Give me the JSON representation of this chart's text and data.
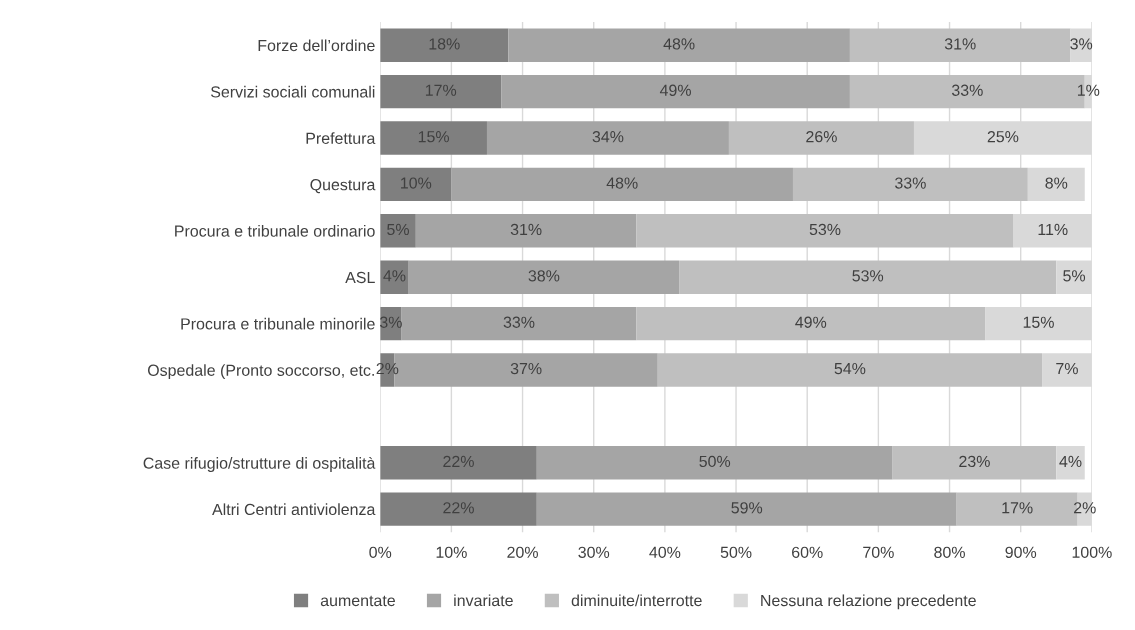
{
  "chart_data": {
    "type": "bar",
    "orientation": "horizontal",
    "stacked": true,
    "categories": [
      "Forze dell’ordine",
      "Servizi sociali comunali",
      "Prefettura",
      "Questura",
      "Procura e tribunale ordinario",
      "ASL",
      "Procura e tribunale minorile",
      "Ospedale (Pronto soccorso, etc.",
      null,
      "Case rifugio/strutture di ospitalità",
      "Altri Centri antiviolenza"
    ],
    "series": [
      {
        "name": "aumentate",
        "color": "#7f7f7f",
        "values": [
          18,
          17,
          15,
          10,
          5,
          4,
          3,
          2,
          null,
          22,
          22
        ],
        "value_labels": [
          "18%",
          "17%",
          "15%",
          "10%",
          "5%",
          "4%",
          "3%",
          "2%",
          null,
          "22%",
          "22%"
        ]
      },
      {
        "name": "invariate",
        "color": "#a5a5a5",
        "values": [
          48,
          49,
          34,
          48,
          31,
          38,
          33,
          37,
          null,
          50,
          59
        ],
        "value_labels": [
          "48%",
          "49%",
          "34%",
          "48%",
          "31%",
          "38%",
          "33%",
          "37%",
          null,
          "50%",
          "59%"
        ]
      },
      {
        "name": "diminuite/interrotte",
        "color": "#bfbfbf",
        "values": [
          31,
          33,
          26,
          33,
          53,
          53,
          49,
          54,
          null,
          23,
          17
        ],
        "value_labels": [
          "31%",
          "33%",
          "26%",
          "33%",
          "53%",
          "53%",
          "49%",
          "54%",
          null,
          "23%",
          "17%"
        ]
      },
      {
        "name": "Nessuna relazione precedente",
        "color": "#d9d9d9",
        "values": [
          3,
          1,
          25,
          8,
          11,
          5,
          15,
          7,
          null,
          4,
          2
        ],
        "value_labels": [
          "3%",
          "1%",
          "25%",
          "8%",
          "11%",
          "5%",
          "15%",
          "7%",
          null,
          "4%",
          "2%"
        ]
      }
    ],
    "xlim": [
      0,
      100
    ],
    "xticks": [
      {
        "value": 0,
        "label": "0%"
      },
      {
        "value": 10,
        "label": "10%"
      },
      {
        "value": 20,
        "label": "20%"
      },
      {
        "value": 30,
        "label": "30%"
      },
      {
        "value": 40,
        "label": "40%"
      },
      {
        "value": 50,
        "label": "50%"
      },
      {
        "value": 60,
        "label": "60%"
      },
      {
        "value": 70,
        "label": "70%"
      },
      {
        "value": 80,
        "label": "80%"
      },
      {
        "value": 90,
        "label": "90%"
      },
      {
        "value": 100,
        "label": "100%"
      }
    ],
    "grid": "x",
    "legend": "bottom"
  }
}
